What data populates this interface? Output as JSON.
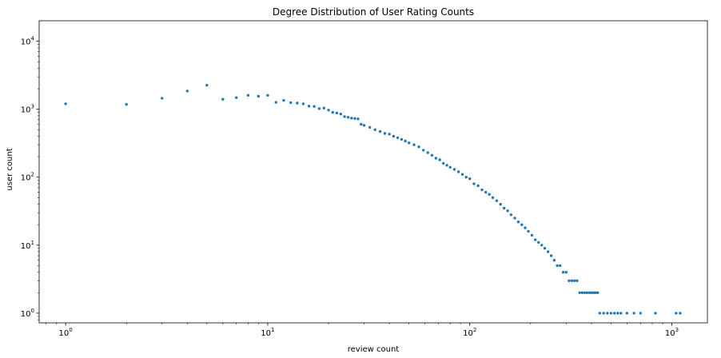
{
  "chart_data": {
    "type": "scatter",
    "title": "Degree Distribution of User Rating Counts",
    "xlabel": "review count",
    "ylabel": "user count",
    "xscale": "log",
    "yscale": "log",
    "xlim": [
      0.74,
      1500
    ],
    "ylim": [
      0.72,
      20000
    ],
    "x_ticks": [
      {
        "value": 1,
        "base": "10",
        "exp": "0"
      },
      {
        "value": 10,
        "base": "10",
        "exp": "1"
      },
      {
        "value": 100,
        "base": "10",
        "exp": "2"
      },
      {
        "value": 1000,
        "base": "10",
        "exp": "3"
      }
    ],
    "y_ticks": [
      {
        "value": 1,
        "base": "10",
        "exp": "0"
      },
      {
        "value": 10,
        "base": "10",
        "exp": "1"
      },
      {
        "value": 100,
        "base": "10",
        "exp": "2"
      },
      {
        "value": 1000,
        "base": "10",
        "exp": "3"
      },
      {
        "value": 10000,
        "base": "10",
        "exp": "4"
      }
    ],
    "grid": false,
    "marker_color": "#1f77b4",
    "x": [
      1,
      2,
      3,
      4,
      5,
      6,
      7,
      8,
      9,
      10,
      11,
      12,
      13,
      14,
      15,
      16,
      17,
      18,
      19,
      20,
      21,
      22,
      23,
      24,
      25,
      26,
      27,
      28,
      29,
      30,
      32,
      34,
      36,
      38,
      40,
      42,
      44,
      46,
      48,
      50,
      53,
      56,
      59,
      62,
      65,
      68,
      71,
      74,
      77,
      80,
      84,
      88,
      92,
      96,
      100,
      105,
      110,
      115,
      120,
      125,
      130,
      136,
      142,
      148,
      154,
      160,
      167,
      174,
      181,
      188,
      195,
      203,
      211,
      219,
      227,
      235,
      244,
      253,
      262,
      271,
      280,
      290,
      300,
      310,
      320,
      330,
      340,
      350,
      360,
      370,
      380,
      390,
      400,
      410,
      420,
      430,
      440,
      460,
      480,
      500,
      520,
      540,
      560,
      600,
      650,
      700,
      830,
      1050,
      1100
    ],
    "y": [
      1200,
      1180,
      1450,
      1850,
      2250,
      1400,
      1480,
      1600,
      1550,
      1600,
      1260,
      1350,
      1250,
      1230,
      1200,
      1110,
      1100,
      1020,
      1040,
      970,
      900,
      880,
      850,
      780,
      760,
      740,
      730,
      720,
      600,
      580,
      540,
      500,
      470,
      440,
      430,
      400,
      380,
      360,
      340,
      320,
      300,
      280,
      250,
      230,
      210,
      190,
      180,
      160,
      150,
      140,
      130,
      120,
      110,
      100,
      95,
      80,
      75,
      65,
      60,
      56,
      50,
      45,
      40,
      35,
      32,
      28,
      25,
      22,
      20,
      18,
      16,
      14,
      12,
      11,
      10,
      9,
      8,
      7,
      6,
      5,
      5,
      4,
      4,
      3,
      3,
      3,
      3,
      2,
      2,
      2,
      2,
      2,
      2,
      2,
      2,
      2,
      1,
      1,
      1,
      1,
      1,
      1,
      1,
      1,
      1,
      1,
      1,
      1,
      1
    ]
  }
}
